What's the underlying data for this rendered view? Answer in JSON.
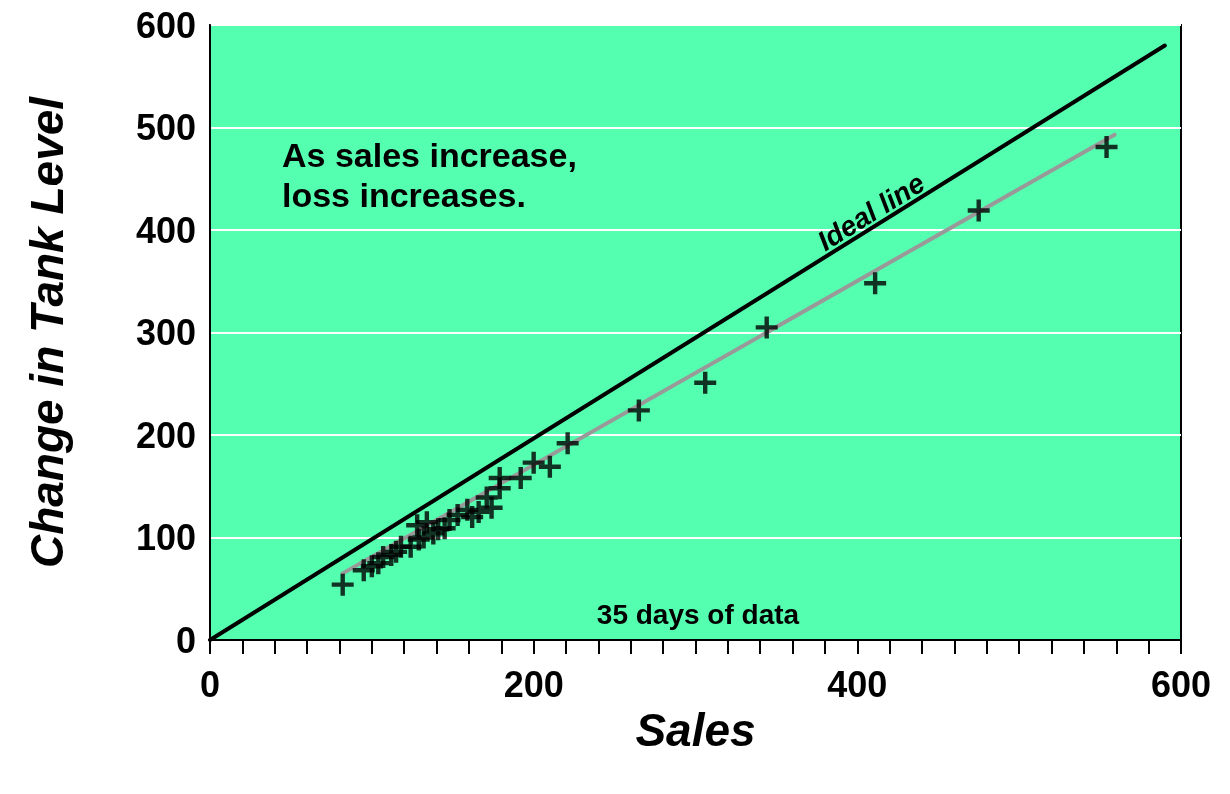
{
  "chart_data": {
    "type": "scatter",
    "xlabel": "Sales",
    "ylabel": "Change in Tank Level",
    "xlim": [
      0,
      600
    ],
    "ylim": [
      0,
      600
    ],
    "xticks": [
      0,
      {
        "value": 20,
        "label": null
      },
      {
        "value": 40,
        "label": null
      },
      {
        "value": 60,
        "label": null
      },
      {
        "value": 80,
        "label": null
      },
      {
        "value": 100,
        "label": null
      },
      {
        "value": 120,
        "label": null
      },
      {
        "value": 140,
        "label": null
      },
      {
        "value": 160,
        "label": null
      },
      {
        "value": 180,
        "label": null
      },
      200,
      {
        "value": 220,
        "label": null
      },
      {
        "value": 240,
        "label": null
      },
      {
        "value": 260,
        "label": null
      },
      {
        "value": 280,
        "label": null
      },
      {
        "value": 300,
        "label": null
      },
      {
        "value": 320,
        "label": null
      },
      {
        "value": 340,
        "label": null
      },
      {
        "value": 360,
        "label": null
      },
      {
        "value": 380,
        "label": null
      },
      400,
      {
        "value": 420,
        "label": null
      },
      {
        "value": 440,
        "label": null
      },
      {
        "value": 460,
        "label": null
      },
      {
        "value": 480,
        "label": null
      },
      {
        "value": 500,
        "label": null
      },
      {
        "value": 520,
        "label": null
      },
      {
        "value": 540,
        "label": null
      },
      {
        "value": 560,
        "label": null
      },
      {
        "value": 580,
        "label": null
      },
      600
    ],
    "yticks": [
      0,
      100,
      200,
      300,
      400,
      500,
      600
    ],
    "grid": "y",
    "marker": "cross",
    "annotations": [
      "As sales increase,\nloss increases.",
      "35 days of data"
    ],
    "series": [
      {
        "type": "line",
        "name": "Ideal line",
        "color": "#000000",
        "marker": "none",
        "x": [
          0,
          590
        ],
        "values": [
          0,
          580
        ]
      },
      {
        "type": "line",
        "color": "#999999",
        "marker": "none",
        "x": [
          82,
          559
        ],
        "values": [
          65,
          493
        ]
      },
      {
        "color": "#000000",
        "x": [
          82,
          95,
          100,
          104,
          107,
          112,
          115,
          118,
          124,
          128,
          129,
          132,
          134,
          138,
          141,
          145,
          148,
          153,
          159,
          162,
          166,
          171,
          174,
          179,
          179,
          192,
          200,
          210,
          221,
          265,
          306,
          344,
          411,
          475,
          554
        ],
        "values": [
          54,
          68,
          72,
          75,
          81,
          83,
          86,
          91,
          91,
          112,
          98,
          100,
          115,
          104,
          108,
          109,
          117,
          122,
          127,
          120,
          125,
          139,
          129,
          148,
          158,
          158,
          173,
          169,
          192,
          224,
          251,
          305,
          348,
          419,
          481
        ]
      }
    ]
  }
}
